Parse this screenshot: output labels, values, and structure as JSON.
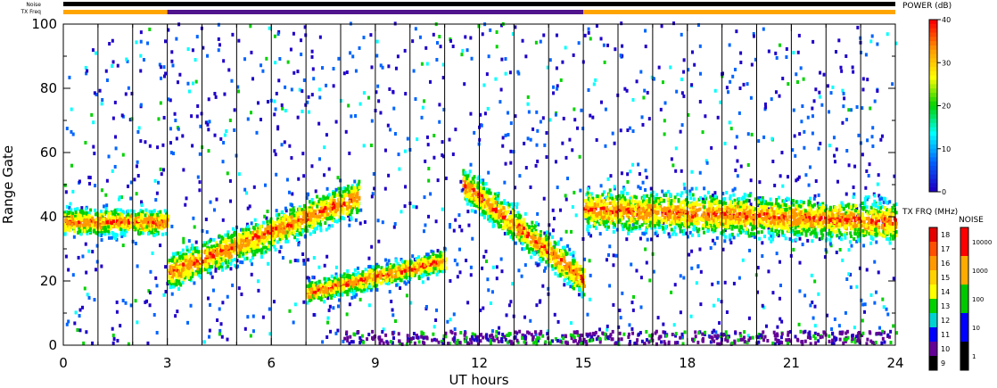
{
  "chart_data": {
    "type": "heatmap",
    "xlabel": "UT hours",
    "ylabel": "Range Gate",
    "xlim": [
      0,
      24
    ],
    "ylim": [
      0,
      100
    ],
    "xticks": [
      0,
      3,
      6,
      9,
      12,
      15,
      18,
      21,
      24
    ],
    "yticks": [
      0,
      20,
      40,
      60,
      80,
      100
    ],
    "vertical_hour_lines": [
      1,
      2,
      3,
      4,
      5,
      6,
      7,
      8,
      9,
      10,
      11,
      12,
      13,
      14,
      15,
      16,
      17,
      18,
      19,
      20,
      21,
      22,
      23
    ],
    "header_strips": {
      "noise_label": "Noise",
      "txfreq_label": "TX Freq",
      "txfreq_segments": [
        {
          "start": 0,
          "end": 3,
          "color": "#ffa500"
        },
        {
          "start": 3,
          "end": 15,
          "color": "#50148c"
        },
        {
          "start": 15,
          "end": 24,
          "color": "#ffa500"
        }
      ]
    },
    "power_scale": {
      "title": "POWER (dB)",
      "ticks": [
        "40",
        "30",
        "20",
        "10",
        "0"
      ],
      "colors": [
        "#ff0000",
        "#ff9900",
        "#ffff00",
        "#00d200",
        "#00ffff",
        "#0064ff",
        "#1e00c8"
      ]
    },
    "txfrq_scale": {
      "title": "TX FRQ (MHz)",
      "ticks": [
        "18",
        "17",
        "16",
        "15",
        "14",
        "13",
        "12",
        "11",
        "10",
        "9"
      ],
      "colors": [
        "#e60000",
        "#ff5000",
        "#ff9900",
        "#ffd200",
        "#ffff00",
        "#00d200",
        "#00d2d2",
        "#0000ff",
        "#640096",
        "#000000"
      ]
    },
    "noise_scale": {
      "title": "NOISE",
      "ticks": [
        "10000",
        "1000",
        "100",
        "10",
        "1"
      ],
      "colors": [
        "#ff0000",
        "#ffaa00",
        "#00c800",
        "#0000ff",
        "#000000"
      ]
    },
    "echo_bands": [
      {
        "name": "band-a",
        "t0": 0.0,
        "t1": 3.0,
        "g0": 38,
        "g1": 38,
        "width": 6
      },
      {
        "name": "band-b",
        "t0": 3.0,
        "t1": 8.5,
        "g0": 22,
        "g1": 46,
        "width": 8
      },
      {
        "name": "band-c",
        "t0": 7.0,
        "t1": 11.0,
        "g0": 16,
        "g1": 26,
        "width": 5
      },
      {
        "name": "band-d",
        "t0": 11.5,
        "t1": 15.0,
        "g0": 50,
        "g1": 20,
        "width": 8
      },
      {
        "name": "band-e",
        "t0": 15.0,
        "t1": 24.0,
        "g0": 42,
        "g1": 38,
        "width": 9
      }
    ]
  }
}
